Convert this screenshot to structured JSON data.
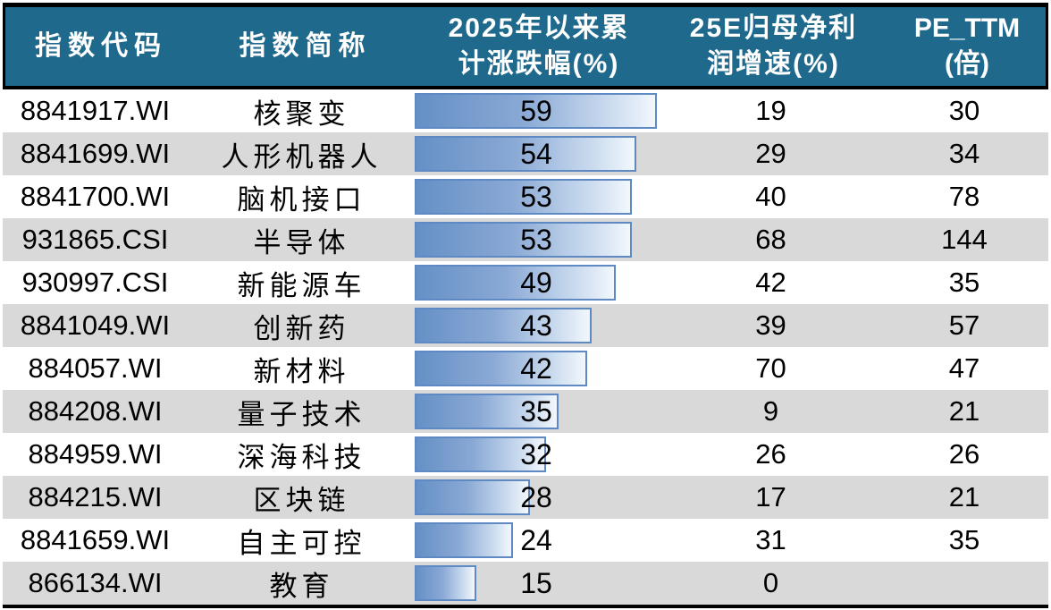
{
  "colors": {
    "header_bg": "#1F698D",
    "stripe": "#D9D9D9",
    "border": "#000000",
    "bar_border": "#5E89C2",
    "bar_fill_start": "#6590C6",
    "bar_fill_end": "#F2F7FC"
  },
  "header": {
    "col_code": "指数代码",
    "col_name": "指数简称",
    "col_change_line1": "2025年以来累",
    "col_change_line2": "计涨跌幅(%)",
    "col_growth_line1": "25E归母净利",
    "col_growth_line2": "润增速(%)",
    "col_pe_line1": "PE_TTM",
    "col_pe_line2": "(倍)"
  },
  "chart_data": {
    "type": "table",
    "columns": [
      "指数代码",
      "指数简称",
      "2025年以来累计涨跌幅(%)",
      "25E归母净利润增速(%)",
      "PE_TTM(倍)"
    ],
    "bar_column": "2025年以来累计涨跌幅(%)",
    "bar_axis_max": 59,
    "rows": [
      {
        "index_code": "8841917.WI",
        "index_name": "核聚变",
        "change_pct_2025": 59,
        "net_profit_growth_25e_pct": 19,
        "pe_ttm": 30
      },
      {
        "index_code": "8841699.WI",
        "index_name": "人形机器人",
        "change_pct_2025": 54,
        "net_profit_growth_25e_pct": 29,
        "pe_ttm": 34
      },
      {
        "index_code": "8841700.WI",
        "index_name": "脑机接口",
        "change_pct_2025": 53,
        "net_profit_growth_25e_pct": 40,
        "pe_ttm": 78
      },
      {
        "index_code": "931865.CSI",
        "index_name": "半导体",
        "change_pct_2025": 53,
        "net_profit_growth_25e_pct": 68,
        "pe_ttm": 144
      },
      {
        "index_code": "930997.CSI",
        "index_name": "新能源车",
        "change_pct_2025": 49,
        "net_profit_growth_25e_pct": 42,
        "pe_ttm": 35
      },
      {
        "index_code": "8841049.WI",
        "index_name": "创新药",
        "change_pct_2025": 43,
        "net_profit_growth_25e_pct": 39,
        "pe_ttm": 57
      },
      {
        "index_code": "884057.WI",
        "index_name": "新材料",
        "change_pct_2025": 42,
        "net_profit_growth_25e_pct": 70,
        "pe_ttm": 47
      },
      {
        "index_code": "884208.WI",
        "index_name": "量子技术",
        "change_pct_2025": 35,
        "net_profit_growth_25e_pct": 9,
        "pe_ttm": 21
      },
      {
        "index_code": "884959.WI",
        "index_name": "深海科技",
        "change_pct_2025": 32,
        "net_profit_growth_25e_pct": 26,
        "pe_ttm": 26
      },
      {
        "index_code": "884215.WI",
        "index_name": "区块链",
        "change_pct_2025": 28,
        "net_profit_growth_25e_pct": 17,
        "pe_ttm": 21
      },
      {
        "index_code": "8841659.WI",
        "index_name": "自主可控",
        "change_pct_2025": 24,
        "net_profit_growth_25e_pct": 31,
        "pe_ttm": 35
      },
      {
        "index_code": "866134.WI",
        "index_name": "教育",
        "change_pct_2025": 15,
        "net_profit_growth_25e_pct": 0,
        "pe_ttm": null
      }
    ]
  }
}
